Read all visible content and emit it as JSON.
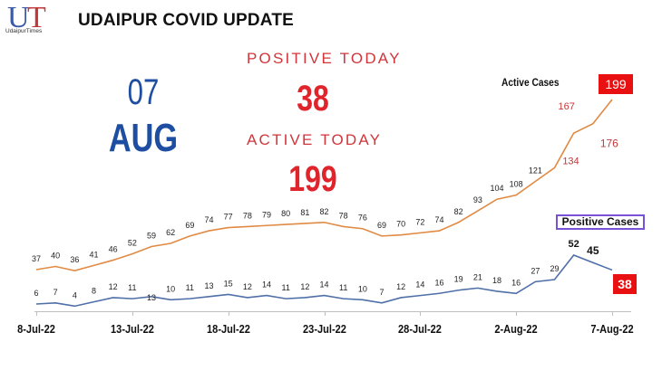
{
  "header": {
    "logo_letters": [
      "U",
      "T"
    ],
    "logo_text": "UdaipurTimes",
    "title": "UDAIPUR COVID UPDATE"
  },
  "date": {
    "day": "07",
    "month": "AUG"
  },
  "summary": {
    "positive_label": "POSITIVE TODAY",
    "positive_value": "38",
    "active_label": "ACTIVE TODAY",
    "active_value": "199"
  },
  "legend": {
    "active": "Active Cases",
    "positive": "Positive Cases"
  },
  "badges": {
    "active_last": "199",
    "positive_last": "38"
  },
  "colors": {
    "active_line": "#e08a44",
    "positive_line": "#4f6fa8",
    "headline_red": "#e0242b",
    "date_blue": "#1d4ea1",
    "badge_red": "#e81010",
    "legend_border": "#7a52d6"
  },
  "chart_data": {
    "type": "line",
    "title": "UDAIPUR COVID UPDATE",
    "xlabel": "",
    "ylabel": "",
    "grid": false,
    "x": [
      "8-Jul-22",
      "9-Jul-22",
      "10-Jul-22",
      "11-Jul-22",
      "12-Jul-22",
      "13-Jul-22",
      "14-Jul-22",
      "15-Jul-22",
      "16-Jul-22",
      "17-Jul-22",
      "18-Jul-22",
      "19-Jul-22",
      "20-Jul-22",
      "21-Jul-22",
      "22-Jul-22",
      "23-Jul-22",
      "24-Jul-22",
      "25-Jul-22",
      "26-Jul-22",
      "27-Jul-22",
      "28-Jul-22",
      "29-Jul-22",
      "30-Jul-22",
      "31-Jul-22",
      "1-Aug-22",
      "2-Aug-22",
      "3-Aug-22",
      "4-Aug-22",
      "5-Aug-22",
      "6-Aug-22",
      "7-Aug-22"
    ],
    "x_tick_labels": [
      "8-Jul-22",
      "13-Jul-22",
      "18-Jul-22",
      "23-Jul-22",
      "28-Jul-22",
      "2-Aug-22",
      "7-Aug-22"
    ],
    "series": [
      {
        "name": "Active Cases",
        "values": [
          37,
          40,
          36,
          41,
          46,
          52,
          59,
          62,
          69,
          74,
          77,
          78,
          79,
          80,
          81,
          82,
          78,
          76,
          69,
          70,
          72,
          74,
          82,
          93,
          104,
          108,
          121,
          134,
          167,
          176,
          199
        ]
      },
      {
        "name": "Positive Cases",
        "values": [
          6,
          7,
          4,
          8,
          12,
          11,
          13,
          10,
          11,
          13,
          15,
          12,
          14,
          11,
          12,
          14,
          11,
          10,
          7,
          12,
          14,
          16,
          19,
          21,
          18,
          16,
          27,
          29,
          52,
          45,
          38
        ]
      }
    ]
  }
}
